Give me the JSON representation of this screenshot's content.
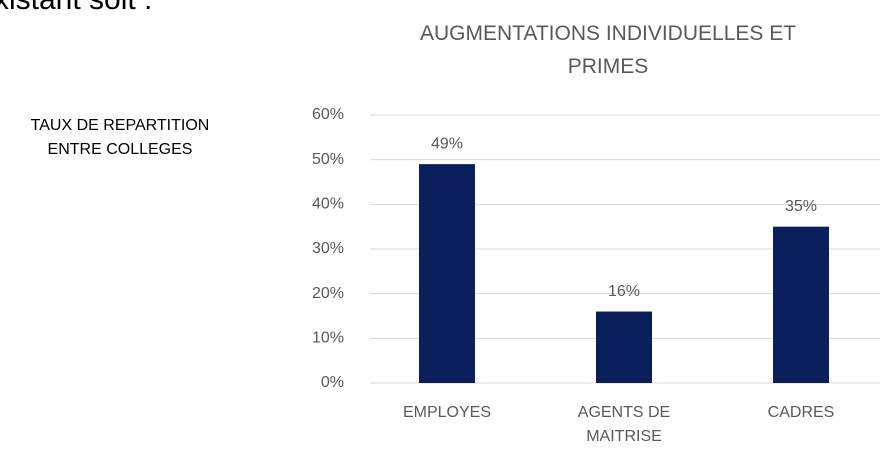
{
  "header": {
    "text": "xistant soit :"
  },
  "side_label": [
    "TAUX DE REPARTITION",
    "ENTRE COLLEGES"
  ],
  "chart_data": {
    "type": "bar",
    "title": [
      "AUGMENTATIONS INDIVIDUELLES ET",
      "PRIMES"
    ],
    "categories": [
      "EMPLOYES",
      "AGENTS DE MAITRISE",
      "CADRES"
    ],
    "values": [
      49,
      16,
      35
    ],
    "value_labels": [
      "49%",
      "16%",
      "35%"
    ],
    "color": "#0b1f5c",
    "ylim": [
      0,
      60
    ],
    "yticks": [
      {
        "value": 0,
        "label": "0%"
      },
      {
        "value": 10,
        "label": "10%"
      },
      {
        "value": 20,
        "label": "20%"
      },
      {
        "value": 30,
        "label": "30%"
      },
      {
        "value": 40,
        "label": "40%"
      },
      {
        "value": 50,
        "label": "50%"
      },
      {
        "value": 60,
        "label": "60%"
      }
    ],
    "grid": true
  }
}
